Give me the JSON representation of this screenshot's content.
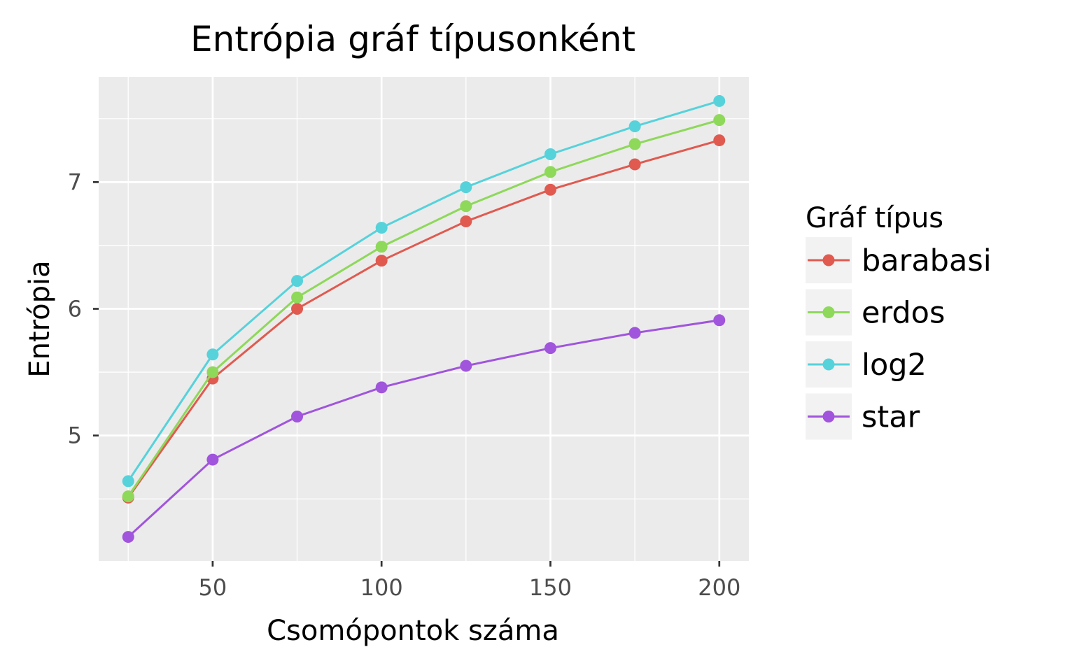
{
  "chart_data": {
    "type": "line",
    "title": "Entrópia gráf típusonként",
    "xlabel": "Csomópontok száma",
    "ylabel": "Entrópia",
    "x": [
      25,
      50,
      75,
      100,
      125,
      150,
      175,
      200
    ],
    "xlim": [
      16.25,
      208.75
    ],
    "ylim": [
      4.01,
      7.83
    ],
    "x_ticks": [
      50,
      100,
      150,
      200
    ],
    "y_ticks": [
      5,
      6,
      7
    ],
    "x_minor": [
      25,
      75,
      125,
      175
    ],
    "y_minor": [
      4.5,
      5.5,
      6.5,
      7.5
    ],
    "grid": true,
    "legend_title": "Gráf típus",
    "legend_position": "right",
    "series": [
      {
        "name": "barabasi",
        "color": "#E05A50",
        "values": [
          4.51,
          5.45,
          6.0,
          6.38,
          6.69,
          6.94,
          7.14,
          7.33
        ]
      },
      {
        "name": "erdos",
        "color": "#8ED85A",
        "values": [
          4.52,
          5.5,
          6.09,
          6.49,
          6.81,
          7.08,
          7.3,
          7.49
        ]
      },
      {
        "name": "log2",
        "color": "#56D2DB",
        "values": [
          4.64,
          5.64,
          6.22,
          6.64,
          6.96,
          7.22,
          7.44,
          7.64
        ]
      },
      {
        "name": "star",
        "color": "#A055DC",
        "values": [
          4.2,
          4.81,
          5.15,
          5.38,
          5.55,
          5.69,
          5.81,
          5.91
        ]
      }
    ]
  }
}
